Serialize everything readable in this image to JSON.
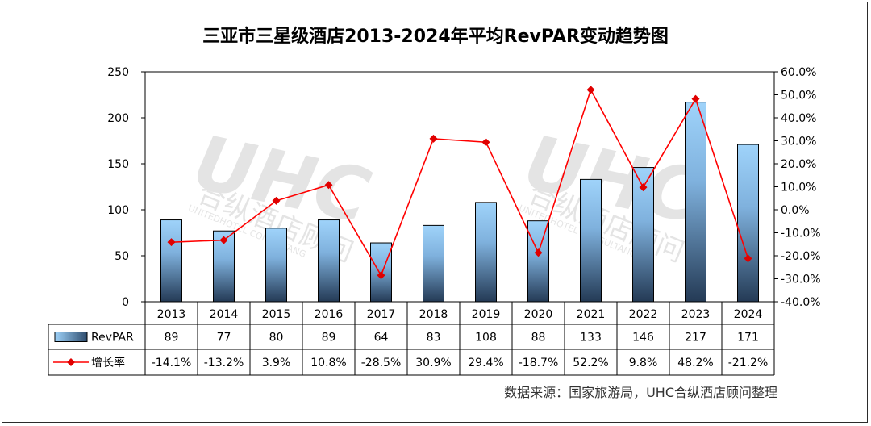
{
  "chart_data": {
    "type": "bar",
    "title": "三亚市三星级酒店2013-2024年平均RevPAR变动趋势图",
    "categories": [
      "2013",
      "2014",
      "2015",
      "2016",
      "2017",
      "2018",
      "2019",
      "2020",
      "2021",
      "2022",
      "2023",
      "2024"
    ],
    "series": [
      {
        "name": "RevPAR",
        "type": "bar",
        "axis": "left",
        "values": [
          89,
          77,
          80,
          89,
          64,
          83,
          108,
          88,
          133,
          146,
          217,
          171
        ],
        "table_labels": [
          "89",
          "77",
          "80",
          "89",
          "64",
          "83",
          "108",
          "88",
          "133",
          "146",
          "217",
          "171"
        ]
      },
      {
        "name": "增长率",
        "type": "line",
        "axis": "right",
        "values": [
          -14.1,
          -13.2,
          3.9,
          10.8,
          -28.5,
          30.9,
          29.4,
          -18.7,
          52.2,
          9.8,
          48.2,
          -21.2
        ],
        "table_labels": [
          "-14.1%",
          "-13.2%",
          "3.9%",
          "10.8%",
          "-28.5%",
          "30.9%",
          "29.4%",
          "-18.7%",
          "52.2%",
          "9.8%",
          "48.2%",
          "-21.2%"
        ]
      }
    ],
    "y_left": {
      "range": [
        0,
        250
      ],
      "ticks": [
        "0",
        "50",
        "100",
        "150",
        "200",
        "250"
      ]
    },
    "y_right": {
      "range": [
        -40,
        60
      ],
      "ticks": [
        "-40.0%",
        "-30.0%",
        "-20.0%",
        "-10.0%",
        "0.0%",
        "10.0%",
        "20.0%",
        "30.0%",
        "40.0%",
        "50.0%",
        "60.0%"
      ]
    },
    "grid": false,
    "legend": "data-table",
    "source": "数据来源：国家旅游局，UHC合纵酒店顾问整理",
    "colors": {
      "bar_top": "#9fd3fa",
      "bar_bottom": "#243a55",
      "line": "#ff0000",
      "marker": "#e00000",
      "axis": "#000000"
    },
    "watermark": {
      "logo": "UHC",
      "text_cn": "合纵酒店顾问",
      "text_en": "UNITEDHOTEL CONSULTANG"
    }
  }
}
